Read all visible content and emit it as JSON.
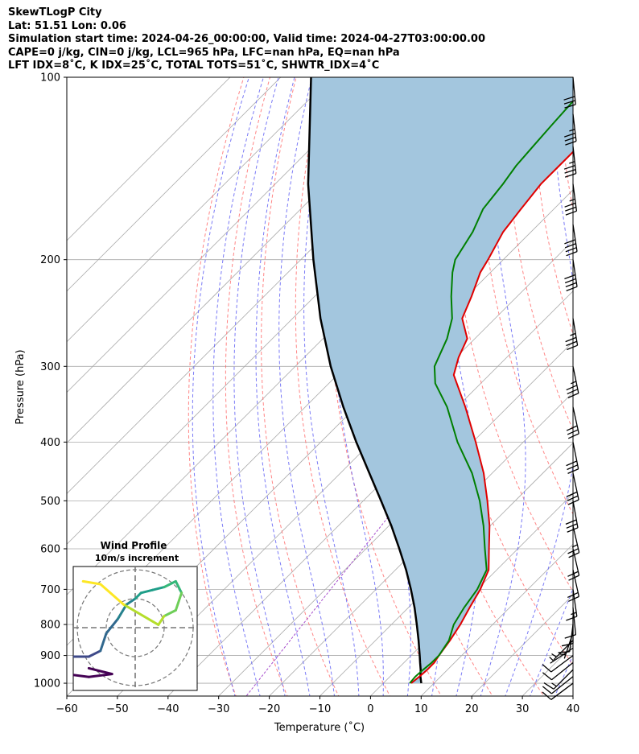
{
  "header": {
    "line1": "SkewTLogP City",
    "line2": "Lat: 51.51   Lon: 0.06",
    "line3": "Simulation start time: 2024-04-26_00:00:00, Valid time: 2024-04-27T03:00:00.00",
    "line4": "CAPE=0 j/kg, CIN=0 j/kg, LCL=965 hPa, LFC=nan hPa, EQ=nan hPa",
    "line5": "LFT IDX=8˚C, K IDX=25˚C, TOTAL TOTS=51˚C, SHWTR_IDX=4˚C"
  },
  "colors": {
    "temperature": "#e00000",
    "dewpoint": "#007f00",
    "parcel": "#000000",
    "shade": "#a3c6de",
    "dry_adiabat": "#ff6666",
    "moist_adiabat": "#6b6bf5",
    "mixing_ratio": "#a64dcc",
    "isotherm": "#aaaaaa"
  },
  "chart_data": [
    {
      "type": "line",
      "title": "SkewTLogP City",
      "xlabel": "Temperature (˚C)",
      "ylabel": "Pressure (hPa)",
      "xlim": [
        -60,
        40
      ],
      "ylim": [
        1050,
        100
      ],
      "x_ticks": [
        "−60",
        "−50",
        "−40",
        "−30",
        "−20",
        "−10",
        "0",
        "10",
        "20",
        "30",
        "40"
      ],
      "x_tick_values": [
        -60,
        -50,
        -40,
        -30,
        -20,
        -10,
        0,
        10,
        20,
        30,
        40
      ],
      "y_ticks": [
        "100",
        "200",
        "300",
        "400",
        "500",
        "600",
        "700",
        "800",
        "900",
        "1000"
      ],
      "y_tick_values": [
        100,
        200,
        300,
        400,
        500,
        600,
        700,
        800,
        900,
        1000
      ],
      "series": [
        {
          "name": "Temperature",
          "pressure": [
            1000,
            975,
            950,
            925,
            900,
            850,
            800,
            750,
            700,
            650,
            600,
            550,
            500,
            450,
            400,
            350,
            310,
            290,
            270,
            250,
            230,
            210,
            200,
            180,
            165,
            150,
            140,
            130,
            120,
            110,
            100
          ],
          "temp": [
            5.5,
            5.8,
            6.0,
            6.0,
            5.5,
            4.7,
            3.6,
            2.1,
            0.6,
            -1.6,
            -5.7,
            -10.1,
            -15.5,
            -21.7,
            -29.4,
            -38.4,
            -47.0,
            -49.5,
            -51.5,
            -56.5,
            -59.0,
            -62.0,
            -63.0,
            -65.5,
            -66.5,
            -67.5,
            -67.5,
            -67.5,
            -67.0,
            -66.5,
            -65.5
          ]
        },
        {
          "name": "Dewpoint",
          "pressure": [
            1000,
            975,
            950,
            925,
            900,
            850,
            800,
            750,
            700,
            650,
            600,
            550,
            500,
            450,
            400,
            350,
            320,
            300,
            270,
            250,
            230,
            210,
            200,
            180,
            165,
            150,
            140,
            130,
            120,
            110,
            100
          ],
          "dewpoint": [
            5.2,
            5.0,
            5.2,
            5.5,
            5.5,
            4.5,
            2.3,
            1.0,
            0.0,
            -2.0,
            -6.5,
            -11.3,
            -17.0,
            -24.0,
            -33.0,
            -42.0,
            -49.0,
            -52.5,
            -55.5,
            -58.5,
            -63.0,
            -67.5,
            -69.5,
            -71.5,
            -74.0,
            -75.0,
            -76.0,
            -76.5,
            -77.0,
            -77.5,
            -78.5
          ]
        },
        {
          "name": "Parcel profile",
          "pressure": [
            1000,
            975,
            950,
            925,
            900,
            850,
            800,
            750,
            700,
            650,
            600,
            550,
            500,
            450,
            400,
            350,
            300,
            250,
            200,
            150,
            100
          ],
          "temp": [
            7.5,
            6.0,
            4.7,
            3.2,
            1.7,
            -1.5,
            -5.0,
            -8.8,
            -13.1,
            -17.9,
            -23.4,
            -29.5,
            -36.5,
            -44.3,
            -53.0,
            -62.5,
            -73.0,
            -84.5,
            -97.5,
            -113.5,
            -134.0
          ]
        }
      ],
      "wind_barbs": {
        "pressure": [
          1000,
          975,
          950,
          925,
          900,
          875,
          850,
          825,
          800,
          775,
          750,
          700,
          650,
          600,
          550,
          500,
          450,
          400,
          350,
          300,
          250,
          200,
          175,
          150,
          130,
          115,
          100
        ],
        "u_ms": [
          4.0,
          5.0,
          5.0,
          5.0,
          4.0,
          3.0,
          2.0,
          1.0,
          0.5,
          0.0,
          -0.5,
          -1.0,
          -2.0,
          -2.5,
          -3.0,
          -2.5,
          -3.0,
          -3.0,
          -3.5,
          -3.5,
          -3.0,
          -3.0,
          -3.0,
          -2.5,
          -2.0,
          -2.0,
          -1.5
        ],
        "v_ms": [
          3.0,
          4.0,
          5.0,
          4.0,
          3.0,
          2.0,
          2.0,
          3.0,
          4.0,
          4.0,
          5.0,
          7.0,
          9.0,
          11.0,
          13.0,
          14.0,
          14.0,
          15.0,
          16.0,
          17.0,
          18.0,
          20.0,
          20.0,
          19.0,
          18.0,
          17.0,
          16.0
        ]
      }
    },
    {
      "type": "line",
      "title": "Wind Profile",
      "subtitle": "10m/s increment",
      "u": [
        -1.6,
        -0.8,
        -1.6,
        -2.4,
        -2.6,
        -2.4,
        -1.6,
        -1.2,
        -1.0,
        -0.6,
        -0.3,
        0.0,
        0.2,
        0.6,
        1.0,
        1.4,
        1.6,
        1.4,
        1.0,
        0.8,
        -0.4,
        -1.2,
        -1.8
      ],
      "v": [
        -1.4,
        -1.6,
        -1.7,
        -1.6,
        -1.3,
        -1.0,
        -1.0,
        -0.8,
        -0.2,
        0.3,
        0.8,
        1.0,
        1.2,
        1.3,
        1.4,
        1.6,
        1.2,
        0.6,
        0.4,
        0.1,
        0.8,
        1.5,
        1.6
      ]
    }
  ]
}
